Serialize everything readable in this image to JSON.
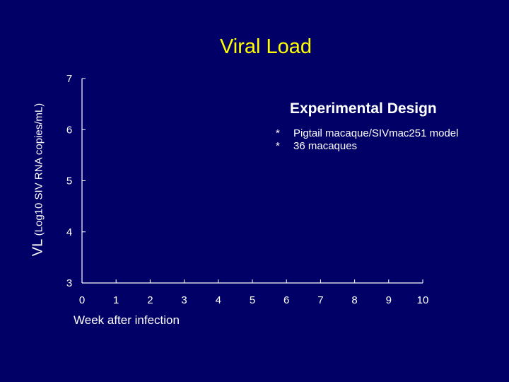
{
  "slide": {
    "title": "Viral Load",
    "background": "#000066",
    "title_color": "#ffff00",
    "text_color": "#ffffff"
  },
  "chart_data": {
    "type": "scatter",
    "title": "",
    "xlabel": "Week after infection",
    "ylabel": "VL",
    "ylabel_units": "(Log10 SIV RNA copies/mL)",
    "xlim": [
      0,
      10
    ],
    "ylim": [
      3,
      7
    ],
    "x_ticks": [
      0,
      1,
      2,
      3,
      4,
      5,
      6,
      7,
      8,
      9,
      10
    ],
    "y_ticks": [
      3,
      4,
      5,
      6,
      7
    ],
    "grid": false,
    "series": []
  },
  "design": {
    "title": "Experimental Design",
    "items": [
      {
        "bullet": "*",
        "text": "Pigtail macaque/SIVmac251 model"
      },
      {
        "bullet": "*",
        "text": "36 macaques"
      }
    ]
  }
}
